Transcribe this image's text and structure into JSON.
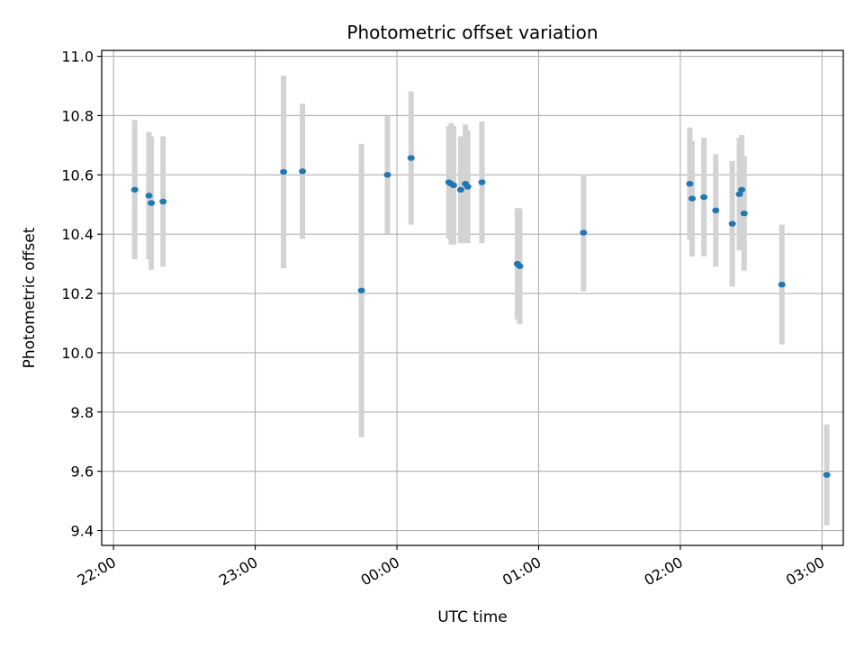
{
  "chart_data": {
    "type": "scatter",
    "title": "Photometric offset variation",
    "xlabel": "UTC time",
    "ylabel": "Photometric offset",
    "x_axis": {
      "kind": "time",
      "ticks": [
        "22:00",
        "23:00",
        "00:00",
        "01:00",
        "02:00",
        "03:00"
      ],
      "range": [
        "21:55",
        "03:09"
      ]
    },
    "y_axis": {
      "ticks": [
        "9.4",
        "9.6",
        "9.8",
        "10.0",
        "10.2",
        "10.4",
        "10.6",
        "10.8",
        "11.0"
      ],
      "range": [
        9.35,
        11.02
      ]
    },
    "grid": true,
    "colors": {
      "point": "#1f77b4",
      "errorbar": "#d3d3d3",
      "grid": "#b0b0b0"
    },
    "points": [
      {
        "x": "22:09",
        "y": 10.55,
        "yerr": 0.235
      },
      {
        "x": "22:15",
        "y": 10.53,
        "yerr": 0.215
      },
      {
        "x": "22:16",
        "y": 10.505,
        "yerr": 0.225
      },
      {
        "x": "22:21",
        "y": 10.51,
        "yerr": 0.22
      },
      {
        "x": "23:12",
        "y": 10.61,
        "yerr": 0.325
      },
      {
        "x": "23:20",
        "y": 10.612,
        "yerr": 0.228
      },
      {
        "x": "23:45",
        "y": 10.21,
        "yerr": 0.495
      },
      {
        "x": "23:56",
        "y": 10.6,
        "yerr": 0.198
      },
      {
        "x": "00:06",
        "y": 10.657,
        "yerr": 0.225
      },
      {
        "x": "00:22",
        "y": 10.575,
        "yerr": 0.19
      },
      {
        "x": "00:23",
        "y": 10.57,
        "yerr": 0.205
      },
      {
        "x": "00:24",
        "y": 10.565,
        "yerr": 0.2
      },
      {
        "x": "00:27",
        "y": 10.55,
        "yerr": 0.18
      },
      {
        "x": "00:29",
        "y": 10.57,
        "yerr": 0.2
      },
      {
        "x": "00:30",
        "y": 10.56,
        "yerr": 0.19
      },
      {
        "x": "00:36",
        "y": 10.575,
        "yerr": 0.205
      },
      {
        "x": "00:51",
        "y": 10.3,
        "yerr": 0.188
      },
      {
        "x": "00:52",
        "y": 10.292,
        "yerr": 0.195
      },
      {
        "x": "01:19",
        "y": 10.405,
        "yerr": 0.198
      },
      {
        "x": "02:04",
        "y": 10.57,
        "yerr": 0.19
      },
      {
        "x": "02:05",
        "y": 10.52,
        "yerr": 0.195
      },
      {
        "x": "02:10",
        "y": 10.525,
        "yerr": 0.2
      },
      {
        "x": "02:15",
        "y": 10.48,
        "yerr": 0.19
      },
      {
        "x": "02:22",
        "y": 10.435,
        "yerr": 0.212
      },
      {
        "x": "02:25",
        "y": 10.535,
        "yerr": 0.19
      },
      {
        "x": "02:26",
        "y": 10.55,
        "yerr": 0.185
      },
      {
        "x": "02:27",
        "y": 10.47,
        "yerr": 0.193
      },
      {
        "x": "02:43",
        "y": 10.23,
        "yerr": 0.202
      },
      {
        "x": "03:02",
        "y": 9.588,
        "yerr": 0.17
      }
    ]
  }
}
